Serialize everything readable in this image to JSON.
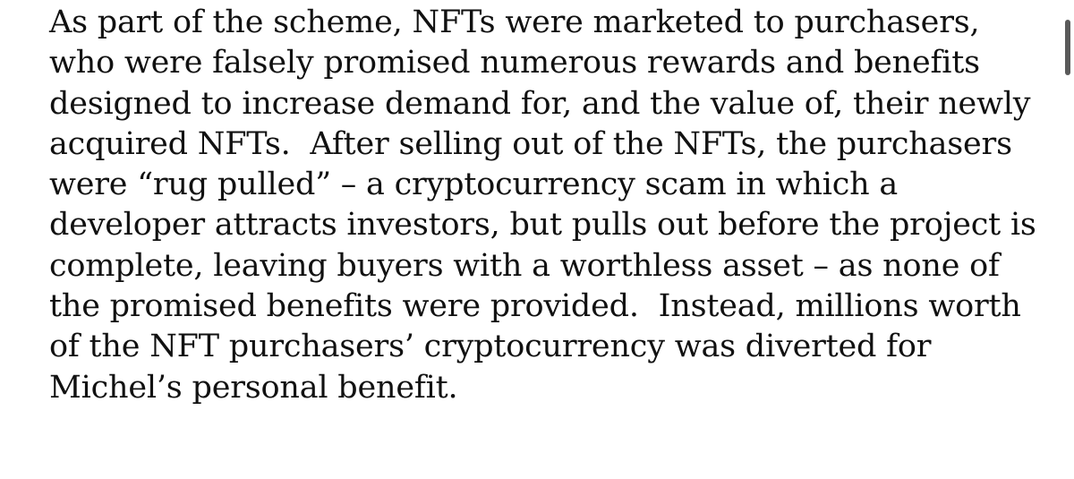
{
  "document": {
    "paragraph_lines": [
      "As part of the scheme, NFTs were marketed to purchasers,",
      "who were falsely promised numerous rewards and benefits",
      "designed to increase demand for, and the value of, their newly",
      "acquired NFTs.  After selling out of the NFTs, the purchasers",
      "were “rug pulled” – a cryptocurrency scam in which a",
      "developer attracts investors, but pulls out before the project is",
      "complete, leaving buyers with a worthless asset – as none of",
      "the promised benefits were provided.  Instead, millions worth",
      "of the NFT purchasers’ cryptocurrency was diverted for",
      "Michel’s personal benefit."
    ]
  },
  "colors": {
    "text": "#111111",
    "background": "#ffffff",
    "scrollbar_thumb": "#5a5a5a"
  }
}
